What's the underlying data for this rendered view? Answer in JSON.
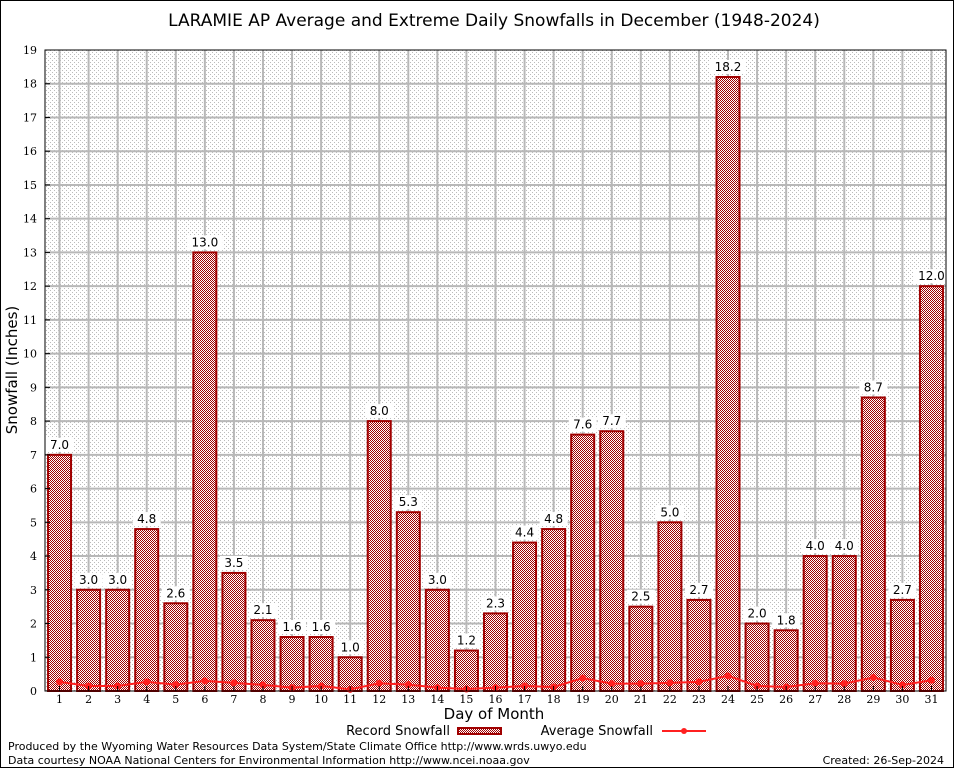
{
  "chart_data": {
    "type": "bar",
    "title": "LARAMIE AP Average and Extreme Daily Snowfalls in December (1948-2024)",
    "xlabel": "Day of Month",
    "ylabel": "Snowfall (Inches)",
    "ylim": [
      0,
      19
    ],
    "yticks": [
      "0",
      "1",
      "2",
      "3",
      "4",
      "5",
      "6",
      "7",
      "8",
      "9",
      "10",
      "11",
      "12",
      "13",
      "14",
      "15",
      "16",
      "17",
      "18",
      "19"
    ],
    "categories": [
      "1",
      "2",
      "3",
      "4",
      "5",
      "6",
      "7",
      "8",
      "9",
      "10",
      "11",
      "12",
      "13",
      "14",
      "15",
      "16",
      "17",
      "18",
      "19",
      "20",
      "21",
      "22",
      "23",
      "24",
      "25",
      "26",
      "27",
      "28",
      "29",
      "30",
      "31"
    ],
    "grid": true,
    "legend_position": "bottom-center",
    "series": [
      {
        "name": "Record Snowfall",
        "type": "bar",
        "color": "#b00000",
        "values": [
          7.0,
          3.0,
          3.0,
          4.8,
          2.6,
          13.0,
          3.5,
          2.1,
          1.6,
          1.6,
          1.0,
          8.0,
          5.3,
          3.0,
          1.2,
          2.3,
          4.4,
          4.8,
          7.6,
          7.7,
          2.5,
          5.0,
          2.7,
          18.2,
          2.0,
          1.8,
          4.0,
          4.0,
          8.7,
          2.7,
          12.0
        ],
        "labels": [
          "7.0",
          "3.0",
          "3.0",
          "4.8",
          "2.6",
          "13.0",
          "3.5",
          "2.1",
          "1.6",
          "1.6",
          "1.0",
          "8.0",
          "5.3",
          "3.0",
          "1.2",
          "2.3",
          "4.4",
          "4.8",
          "7.6",
          "7.7",
          "2.5",
          "5.0",
          "2.7",
          "18.2",
          "2.0",
          "1.8",
          "4.0",
          "4.0",
          "8.7",
          "2.7",
          "12.0"
        ]
      },
      {
        "name": "Average Snowfall",
        "type": "line",
        "color": "#ff2020",
        "values": [
          0.27,
          0.15,
          0.15,
          0.27,
          0.19,
          0.3,
          0.24,
          0.18,
          0.1,
          0.15,
          0.05,
          0.23,
          0.19,
          0.1,
          0.06,
          0.1,
          0.15,
          0.12,
          0.38,
          0.22,
          0.22,
          0.24,
          0.27,
          0.45,
          0.15,
          0.12,
          0.23,
          0.22,
          0.4,
          0.18,
          0.32
        ]
      }
    ]
  },
  "footer": {
    "line1": "Produced by the Wyoming Water Resources Data System/State Climate Office http://www.wrds.uwyo.edu",
    "line2": "Data courtesy NOAA National Centers for Environmental Information http://www.ncei.noaa.gov",
    "created": "Created:  26-Sep-2024"
  }
}
